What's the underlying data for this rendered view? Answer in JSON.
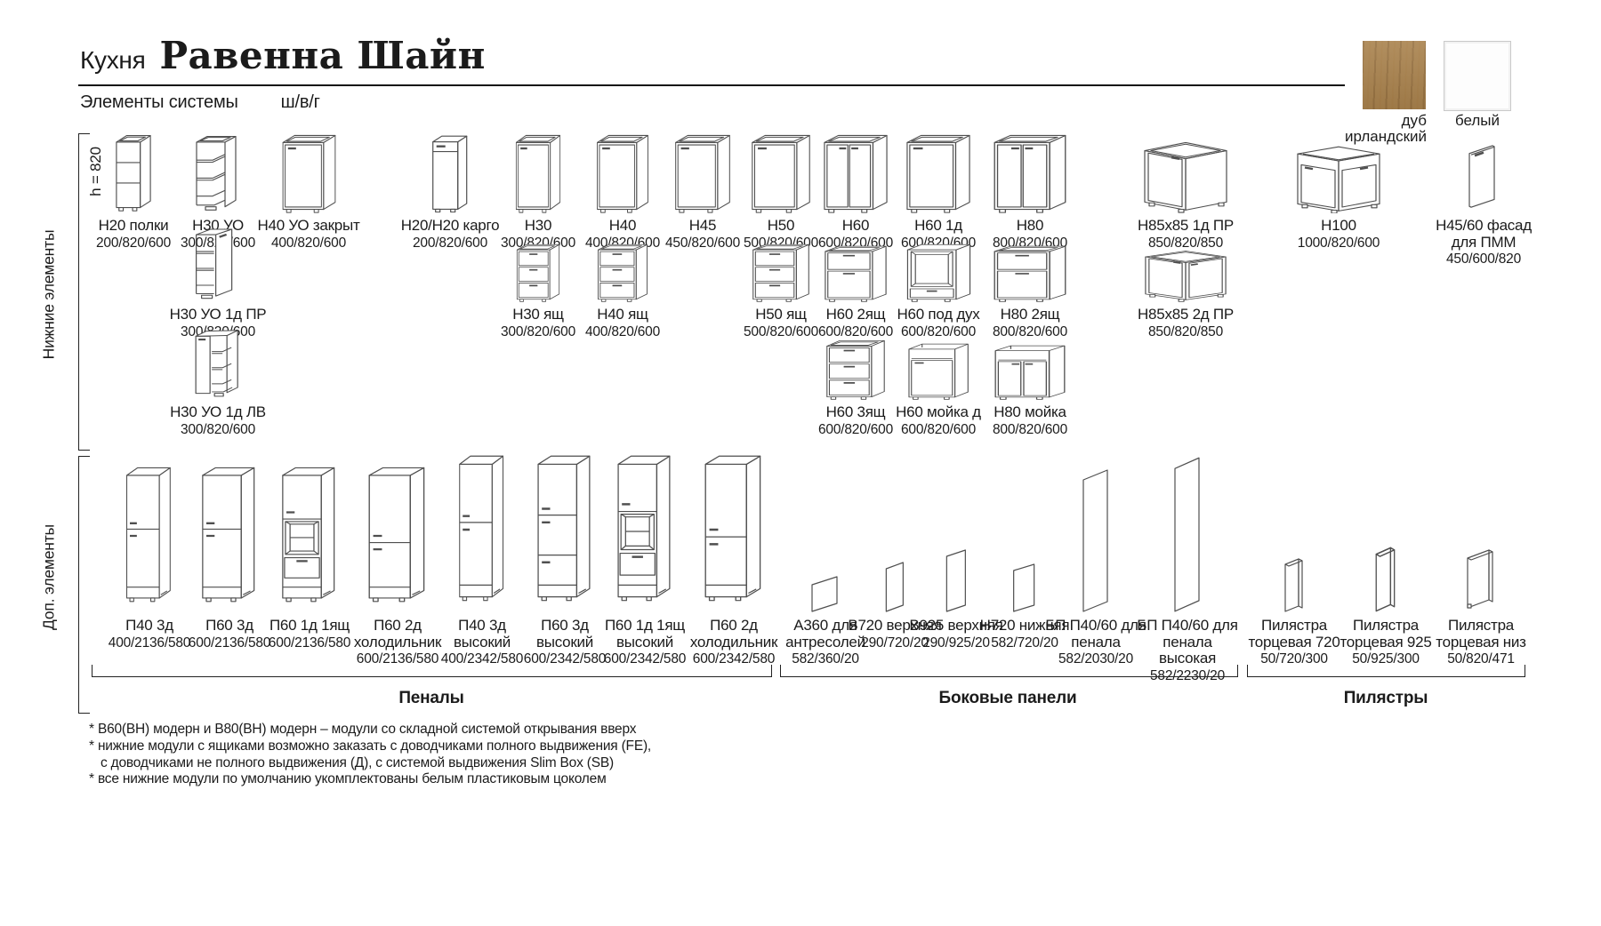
{
  "header": {
    "kitchen_label": "Кухня",
    "title": "Равенна Шайн",
    "subtitle": "Элементы системы",
    "dims_legend": "ш/в/г"
  },
  "finishes": [
    {
      "label": "дуб ирландский",
      "color": "#a9824d"
    },
    {
      "label": "белый",
      "color": "#ffffff"
    }
  ],
  "side": {
    "height_note": "h = 820",
    "lower_section_label": "Нижние элементы",
    "extra_section_label": "Доп. элементы"
  },
  "catalog": {
    "row1": [
      {
        "name": "Н20 полки",
        "dims": "200/820/600",
        "icon": "shelf-open"
      },
      {
        "name": "Н30 УО",
        "dims": "300/820/600",
        "icon": "corner-shelf"
      },
      {
        "name": "Н40 УО закрыт",
        "dims": "400/820/600",
        "icon": "base-1door"
      },
      {
        "name": "Н20/Н20 карго",
        "dims": "200/820/600",
        "icon": "cargo"
      },
      {
        "name": "Н30",
        "dims": "300/820/600",
        "icon": "base-1door"
      },
      {
        "name": "Н40",
        "dims": "400/820/600",
        "icon": "base-1door"
      },
      {
        "name": "Н45",
        "dims": "450/820/600",
        "icon": "base-1door"
      },
      {
        "name": "Н50",
        "dims": "500/820/600",
        "icon": "base-1door"
      },
      {
        "name": "Н60",
        "dims": "600/820/600",
        "icon": "base-2door"
      },
      {
        "name": "Н60 1д",
        "dims": "600/820/600",
        "icon": "base-1door"
      },
      {
        "name": "Н80",
        "dims": "800/820/600",
        "icon": "base-2door"
      },
      {
        "name": "Н85х85 1д ПР",
        "dims": "850/820/850",
        "icon": "corner-1door"
      },
      {
        "name": "Н100",
        "dims": "1000/820/600",
        "icon": "sink-corner"
      },
      {
        "name": "Н45/60 фасад для ПММ",
        "dims": "450/600/820",
        "icon": "facade"
      }
    ],
    "row2": [
      {
        "name": "Н30 УО 1д ПР",
        "dims": "300/820/600",
        "icon": "corner-shelf-door"
      },
      {
        "name": "Н30 ящ",
        "dims": "300/820/600",
        "icon": "drawer3"
      },
      {
        "name": "Н40 ящ",
        "dims": "400/820/600",
        "icon": "drawer3"
      },
      {
        "name": "Н50 ящ",
        "dims": "500/820/600",
        "icon": "drawer3"
      },
      {
        "name": "Н60 2ящ",
        "dims": "600/820/600",
        "icon": "drawer2"
      },
      {
        "name": "Н60 под дух",
        "dims": "600/820/600",
        "icon": "oven"
      },
      {
        "name": "Н80 2ящ",
        "dims": "800/820/600",
        "icon": "drawer2"
      },
      {
        "name": "Н85х85 2д ПР",
        "dims": "850/820/850",
        "icon": "corner-2door"
      }
    ],
    "row3": [
      {
        "name": "Н30 УО 1д ЛВ",
        "dims": "300/820/600",
        "icon": "corner-shelf-door-left"
      },
      {
        "name": "Н60 3ящ",
        "dims": "600/820/600",
        "icon": "drawer3"
      },
      {
        "name": "Н60 мойка д",
        "dims": "600/820/600",
        "icon": "sink-1door"
      },
      {
        "name": "Н80 мойка",
        "dims": "800/820/600",
        "icon": "sink-2door"
      }
    ],
    "tall": [
      {
        "name": "П40 3д",
        "dims": "400/2136/580",
        "icon": "tall-doors"
      },
      {
        "name": "П60 3д",
        "dims": "600/2136/580",
        "icon": "tall-doors"
      },
      {
        "name": "П60 1д 1ящ",
        "dims": "600/2136/580",
        "icon": "tall-niche"
      },
      {
        "name": "П60 2д холодильник",
        "dims": "600/2136/580",
        "icon": "tall-fridge"
      },
      {
        "name": "П40 3д высокий",
        "dims": "400/2342/580",
        "icon": "tall-doors"
      },
      {
        "name": "П60 3д высокий",
        "dims": "600/2342/580",
        "icon": "tall-doors3"
      },
      {
        "name": "П60 1д 1ящ высокий",
        "dims": "600/2342/580",
        "icon": "tall-niche"
      },
      {
        "name": "П60 2д холодильник",
        "dims": "600/2342/580",
        "icon": "tall-fridge"
      },
      {
        "name": "А360 для антресолей",
        "dims": "582/360/20",
        "icon": "panel-a360"
      },
      {
        "name": "В720 верхняя",
        "dims": "290/720/20",
        "icon": "panel-v720"
      },
      {
        "name": "В925 верхняя",
        "dims": "290/925/20",
        "icon": "panel-v925"
      },
      {
        "name": "Н720 нижняя",
        "dims": "582/720/20",
        "icon": "panel-n720"
      },
      {
        "name": "БП П40/60 для пенала",
        "dims": "582/2030/20",
        "icon": "panel-bp"
      },
      {
        "name": "БП П40/60 для пенала высокая",
        "dims": "582/2230/20",
        "icon": "panel-bp"
      },
      {
        "name": "Пилястра торцевая 720",
        "dims": "50/720/300",
        "icon": "pilaster"
      },
      {
        "name": "Пилястра торцевая 925",
        "dims": "50/925/300",
        "icon": "pilaster"
      },
      {
        "name": "Пилястра торцевая низ",
        "dims": "50/820/471",
        "icon": "pilaster-low"
      }
    ]
  },
  "groups": [
    {
      "label": "Пеналы"
    },
    {
      "label": "Боковые панели"
    },
    {
      "label": "Пилястры"
    }
  ],
  "footnotes": [
    "* В60(ВН) модерн и В80(ВН) модерн – модули со складной системой открывания вверх",
    "* нижние модули с ящиками возможно заказать с доводчиками полного выдвижения (FE),",
    "с доводчиками не полного выдвижения (Д), с системой выдвижения Slim Box (SB)",
    "* все нижние модули по умолчанию укомплектованы белым пластиковым цоколем"
  ],
  "line_color": "#4f4f4f"
}
